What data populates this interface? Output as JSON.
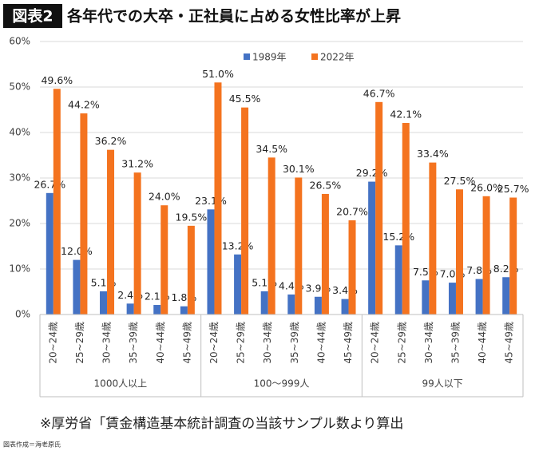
{
  "chart_data": {
    "type": "bar",
    "badge": "図表2",
    "title": "各年代での大卒・正社員に占める女性比率が上昇",
    "note": "※厚労省「賃金構造基本統計調査の当該サンプル数より算出",
    "credit": "図表作成＝海老原氏",
    "groups": [
      {
        "name": "1000人以上",
        "categories": [
          "20~24歳",
          "25~29歳",
          "30~34歳",
          "35~39歳",
          "40~44歳",
          "45~49歳"
        ]
      },
      {
        "name": "100〜999人",
        "categories": [
          "20~24歳",
          "25~29歳",
          "30~34歳",
          "35~39歳",
          "40~44歳",
          "45~49歳"
        ]
      },
      {
        "name": "99人以下",
        "categories": [
          "20~24歳",
          "25~29歳",
          "30~34歳",
          "35~39歳",
          "40~44歳",
          "45~49歳"
        ]
      }
    ],
    "series": [
      {
        "name": "1989年",
        "color": "#4472c4",
        "values": [
          26.7,
          12.0,
          5.1,
          2.4,
          2.1,
          1.8,
          23.1,
          13.2,
          5.1,
          4.4,
          3.9,
          3.4,
          29.2,
          15.2,
          7.5,
          7.0,
          7.8,
          8.2
        ],
        "value_labels": [
          "26.7%",
          "12.0%",
          "5.1%",
          "2.4%",
          "2.1%",
          "1.8%",
          "23.1%",
          "13.2%",
          "5.1%",
          "4.4%",
          "3.9%",
          "3.4%",
          "29.2%",
          "15.2%",
          "7.5%",
          "7.0%",
          "7.8%",
          "8.2%"
        ]
      },
      {
        "name": "2022年",
        "color": "#f4731f",
        "values": [
          49.6,
          44.2,
          36.2,
          31.2,
          24.0,
          19.5,
          51.0,
          45.5,
          34.5,
          30.1,
          26.5,
          20.7,
          46.7,
          42.1,
          33.4,
          27.5,
          26.0,
          25.7
        ],
        "value_labels": [
          "49.6%",
          "44.2%",
          "36.2%",
          "31.2%",
          "24.0%",
          "19.5%",
          "51.0%",
          "45.5%",
          "34.5%",
          "30.1%",
          "26.5%",
          "20.7%",
          "46.7%",
          "42.1%",
          "33.4%",
          "27.5%",
          "26.0%",
          "25.7%"
        ]
      }
    ],
    "ylim": [
      0,
      60
    ],
    "yticks": [
      {
        "value": 0,
        "label": "0%"
      },
      {
        "value": 10,
        "label": "10%"
      },
      {
        "value": 20,
        "label": "20%"
      },
      {
        "value": 30,
        "label": "30%"
      },
      {
        "value": 40,
        "label": "40%"
      },
      {
        "value": 50,
        "label": "50%"
      },
      {
        "value": 60,
        "label": "60%"
      }
    ],
    "grid": true,
    "legend": "top"
  }
}
